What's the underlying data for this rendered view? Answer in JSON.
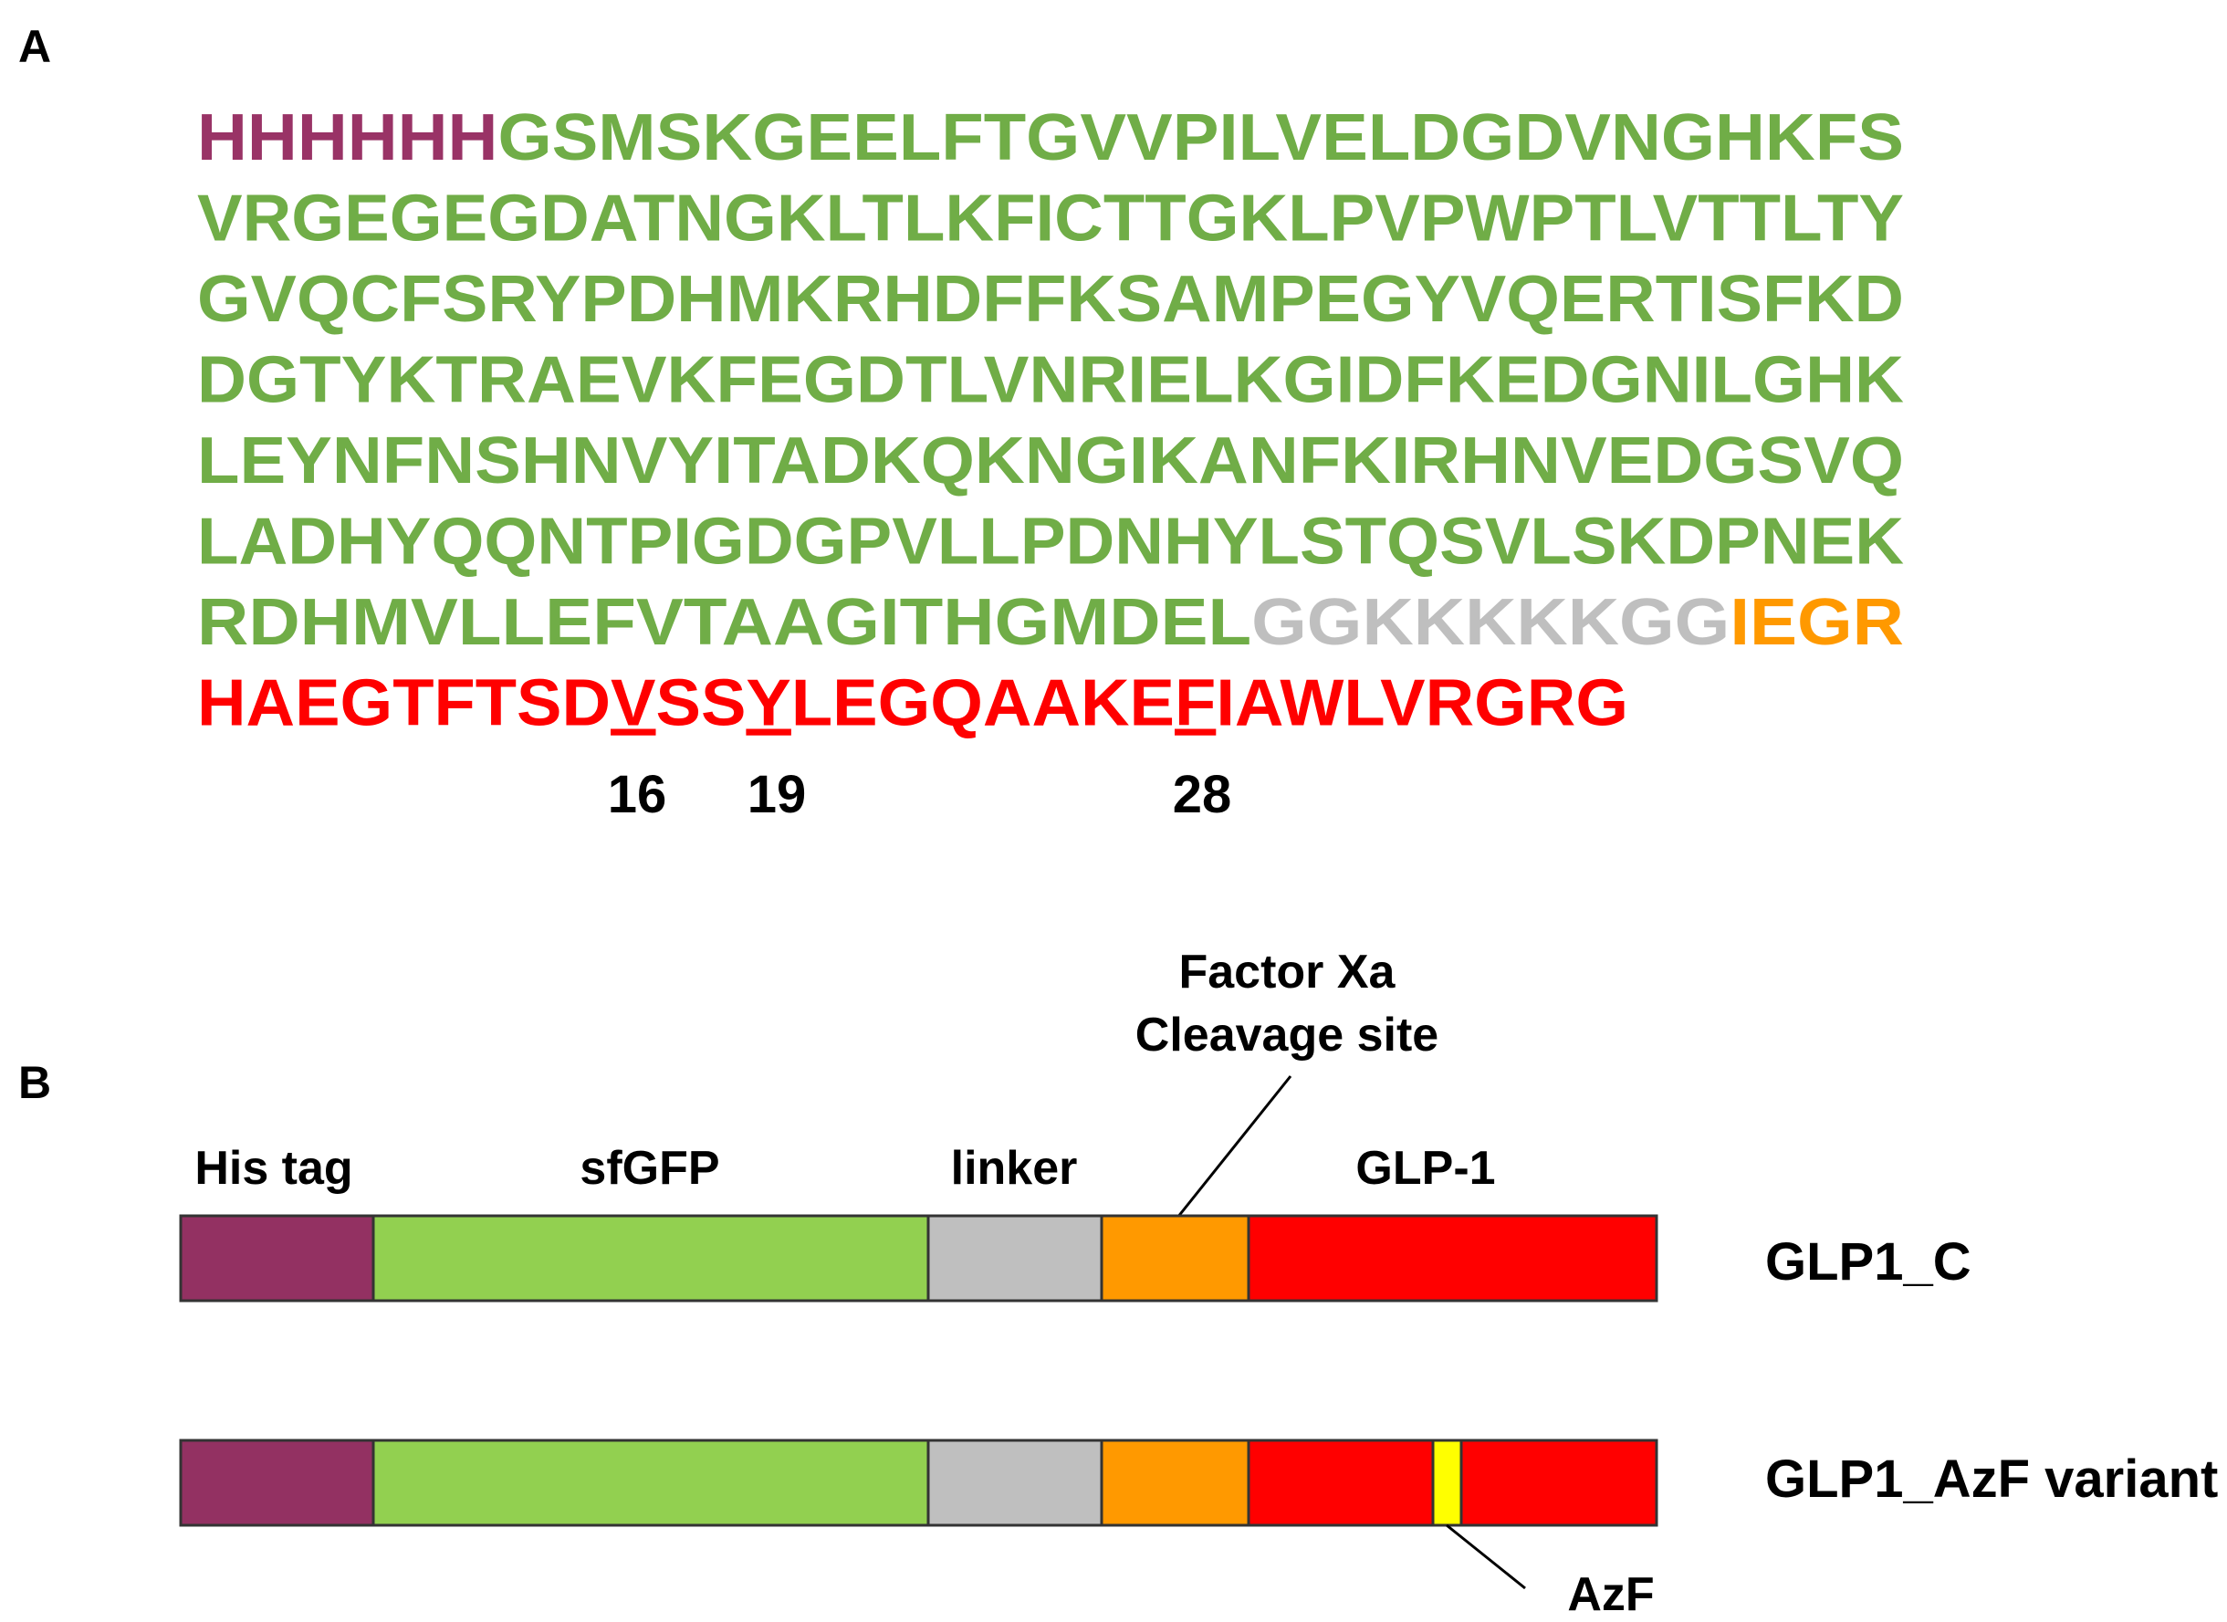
{
  "panel_a": {
    "label": "A",
    "lines": [
      [
        {
          "text": "HHHHHH",
          "color": "#993366"
        },
        {
          "text": "GSMSKGEELFTGVVPILVELDGDVNGHKFS",
          "color": "#70ad47"
        }
      ],
      [
        {
          "text": "VRGEGEGDATNGKLTLKFICTTGKLPVPWPTLVTTLTY",
          "color": "#70ad47"
        }
      ],
      [
        {
          "text": "GVQCFSRYPDHMKRHDFFKSAMPEGYVQERTISFKD",
          "color": "#70ad47"
        }
      ],
      [
        {
          "text": "DGTYKTRAEVKFEGDTLVNRIELKGIDFKEDGNILGHK",
          "color": "#70ad47"
        }
      ],
      [
        {
          "text": "LEYNFNSHNVYITADKQKNGIKANFKIRHNVEDGSVQ",
          "color": "#70ad47"
        }
      ],
      [
        {
          "text": "LADHYQQNTPIGDGPVLLPDNHYLSTQSVLSKDPNEK",
          "color": "#70ad47"
        }
      ],
      [
        {
          "text": "RDHMVLLEFVTAAGITHGMDEL",
          "color": "#70ad47"
        },
        {
          "text": "GGKKKKKGG",
          "color": "#bfbfbf"
        },
        {
          "text": "IEGR",
          "color": "#ff9900"
        }
      ],
      [
        {
          "text": "HAEGTFTSD",
          "color": "#ff0000"
        },
        {
          "text": "V",
          "color": "#ff0000",
          "underline": true
        },
        {
          "text": "SS",
          "color": "#ff0000"
        },
        {
          "text": "Y",
          "color": "#ff0000",
          "underline": true
        },
        {
          "text": "LEGQAAKE",
          "color": "#ff0000"
        },
        {
          "text": "F",
          "color": "#ff0000",
          "underline": true
        },
        {
          "text": "IAWLVRGRG",
          "color": "#ff0000"
        }
      ]
    ],
    "position_labels": [
      16,
      19,
      28
    ]
  },
  "panel_b": {
    "label": "B",
    "segment_labels": [
      "His tag",
      "sfGFP",
      "linker",
      "GLP-1"
    ],
    "cleavage_label": [
      "Factor Xa",
      "Cleavage site"
    ],
    "constructs": [
      "GLP1_C",
      "GLP1_AzF variant"
    ],
    "marker_label": "AzF"
  }
}
